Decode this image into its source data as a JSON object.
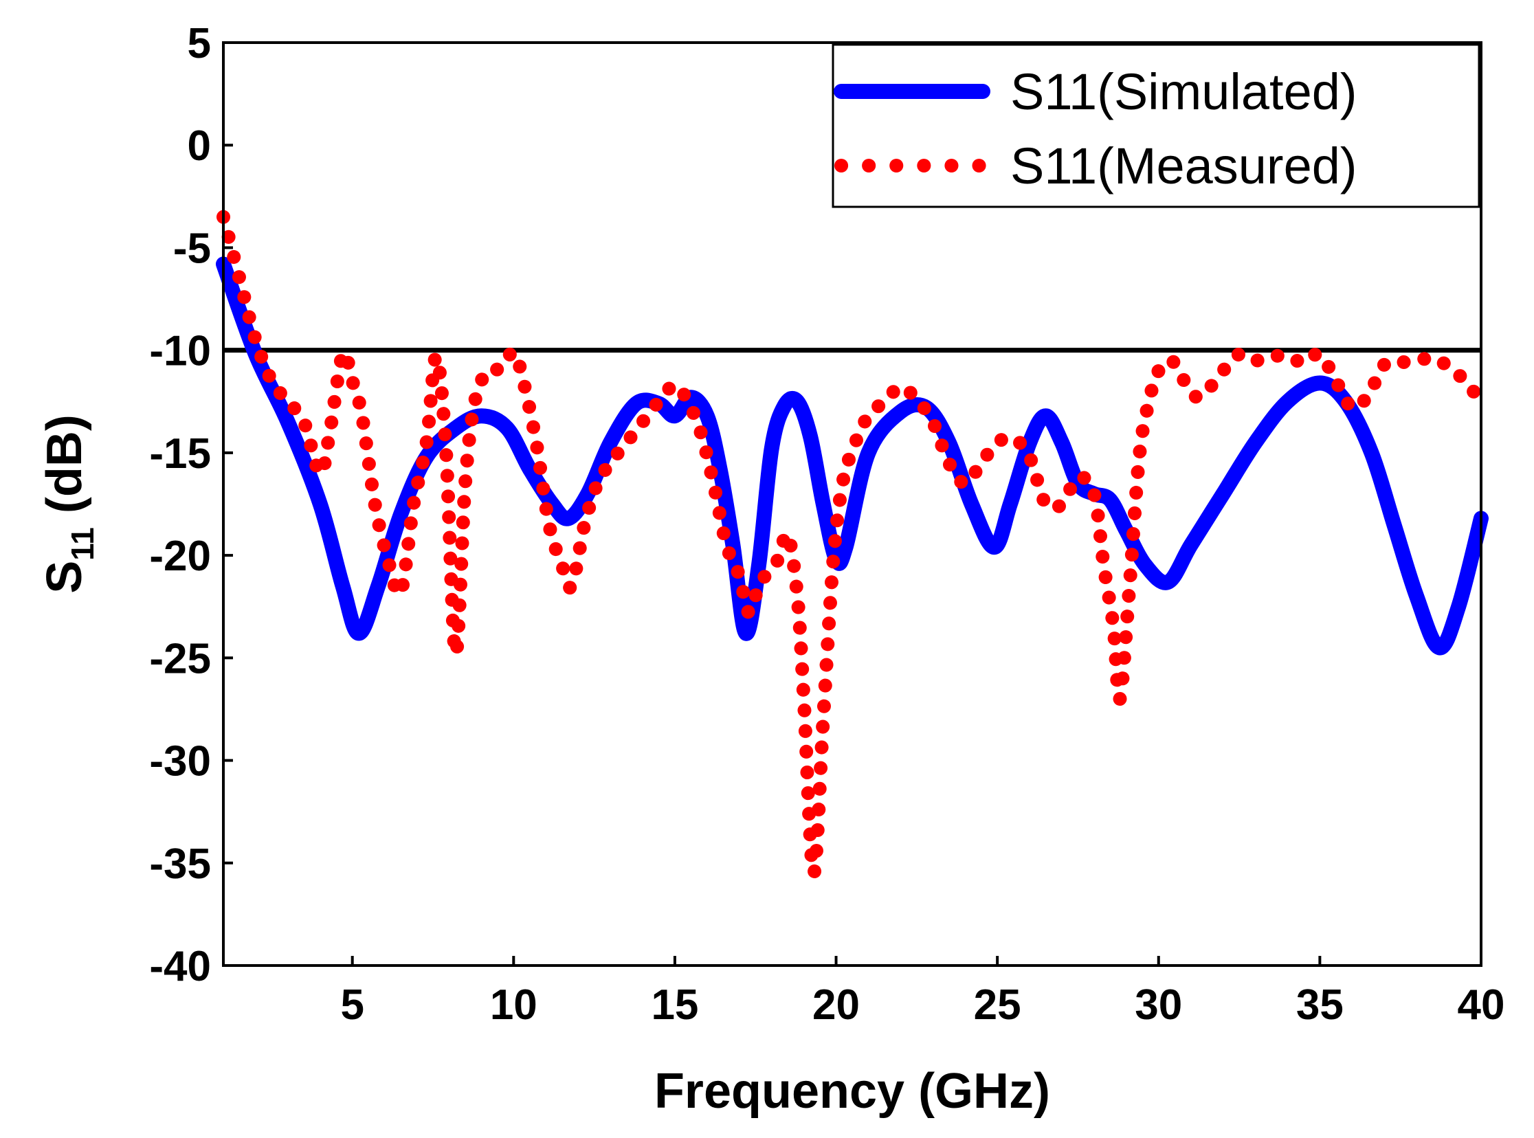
{
  "chart_data": {
    "type": "line",
    "title": "",
    "xlabel": "Frequency (GHz)",
    "ylabel_main": "S",
    "ylabel_sub": "11",
    "ylabel_rest": " (dB)",
    "xlim": [
      1,
      40
    ],
    "ylim": [
      -40,
      5
    ],
    "xticks": [
      5,
      10,
      15,
      20,
      25,
      30,
      35,
      40
    ],
    "yticks": [
      5,
      0,
      -5,
      -10,
      -15,
      -20,
      -25,
      -30,
      -35,
      -40
    ],
    "reference_line_y": -10,
    "grid": false,
    "legend_position": "top-right",
    "series": [
      {
        "name": "S11(Simulated)",
        "color": "#0000ff",
        "style": "solid",
        "x": [
          1,
          2,
          3,
          4,
          4.7,
          5.2,
          5.8,
          6.5,
          7.3,
          8.2,
          9,
          9.8,
          10.5,
          11.2,
          11.7,
          12.3,
          13,
          13.8,
          14.5,
          15,
          15.5,
          16,
          16.4,
          16.8,
          17.2,
          17.6,
          18,
          18.4,
          18.8,
          19.2,
          19.6,
          20,
          20.3,
          21,
          22,
          22.8,
          23.5,
          24.2,
          24.9,
          25.4,
          26,
          26.5,
          27,
          27.5,
          28,
          28.5,
          29,
          29.6,
          30.3,
          31,
          32,
          33,
          34,
          35,
          35.8,
          36.6,
          37.3,
          38,
          38.7,
          39.3,
          40
        ],
        "y": [
          -5.8,
          -10.2,
          -13.5,
          -17.5,
          -21.5,
          -23.8,
          -21.5,
          -18,
          -15.2,
          -13.8,
          -13.2,
          -13.8,
          -15.8,
          -17.5,
          -18.2,
          -17,
          -14.5,
          -12.6,
          -12.6,
          -13.2,
          -12.3,
          -13.2,
          -15.8,
          -19.5,
          -23.8,
          -20.5,
          -14.8,
          -12.7,
          -12.5,
          -14.2,
          -17.5,
          -20.2,
          -19.6,
          -15,
          -13,
          -12.8,
          -14.5,
          -17.5,
          -19.6,
          -17.5,
          -14.5,
          -13.2,
          -14.5,
          -16.5,
          -17,
          -17.3,
          -18.8,
          -20.5,
          -21.3,
          -19.5,
          -17,
          -14.5,
          -12.5,
          -11.6,
          -12.5,
          -15,
          -18.5,
          -22,
          -24.5,
          -22.5,
          -18.2
        ]
      },
      {
        "name": "S11(Measured)",
        "color": "#ff0000",
        "style": "dotted",
        "x": [
          1,
          1.5,
          2,
          2.5,
          3,
          3.5,
          4,
          4.3,
          4.7,
          5,
          5.3,
          5.7,
          6.1,
          6.5,
          6.9,
          7.3,
          7.6,
          7.9,
          8.2,
          8.5,
          8.8,
          9.2,
          9.6,
          10,
          10.3,
          10.7,
          11.1,
          11.5,
          11.8,
          12.2,
          12.6,
          13,
          13.5,
          14,
          14.5,
          15,
          15.4,
          15.8,
          16.2,
          16.6,
          17,
          17.3,
          17.6,
          17.9,
          18.2,
          18.5,
          18.8,
          19,
          19.3,
          19.6,
          19.9,
          20.2,
          20.6,
          21,
          21.5,
          22,
          22.5,
          23,
          23.5,
          24,
          24.5,
          25,
          25.5,
          26,
          26.5,
          27,
          27.5,
          28,
          28.3,
          28.6,
          28.8,
          29.1,
          29.4,
          29.7,
          30,
          30.4,
          30.8,
          31.2,
          31.6,
          32,
          32.5,
          33,
          33.5,
          34,
          34.5,
          35,
          35.5,
          36,
          36.5,
          37,
          37.5,
          38,
          38.5,
          39,
          39.5,
          40
        ],
        "y": [
          -3.5,
          -6.5,
          -9.5,
          -11.5,
          -12.5,
          -13.5,
          -16,
          -14,
          -10.2,
          -11.5,
          -13.2,
          -17.5,
          -20.2,
          -21.8,
          -17.5,
          -14.5,
          -10.3,
          -14.8,
          -24.8,
          -16.5,
          -12.5,
          -11,
          -10.9,
          -10.1,
          -11.5,
          -14.5,
          -18.5,
          -20.5,
          -21.5,
          -18.5,
          -16.5,
          -15.5,
          -14.5,
          -13.5,
          -12.5,
          -11.7,
          -12.5,
          -14,
          -16.5,
          -19.5,
          -21,
          -22.8,
          -21.5,
          -20.8,
          -20.2,
          -19,
          -22,
          -27,
          -35.5,
          -28,
          -20.5,
          -16.5,
          -14.5,
          -13.2,
          -12.5,
          -11.8,
          -12.4,
          -13.5,
          -15.5,
          -16.5,
          -15.5,
          -14.5,
          -14.3,
          -15.2,
          -17.5,
          -17.5,
          -16.2,
          -17,
          -20.5,
          -23.5,
          -27,
          -21.5,
          -15.2,
          -12.5,
          -11,
          -10.5,
          -11.5,
          -12.3,
          -11.8,
          -11,
          -10.2,
          -10.5,
          -10.3,
          -10.3,
          -10.6,
          -10.2,
          -11.5,
          -12.8,
          -12.2,
          -10.7,
          -10.6,
          -10.5,
          -10.4,
          -10.8,
          -11.5,
          -12.5
        ]
      }
    ]
  }
}
